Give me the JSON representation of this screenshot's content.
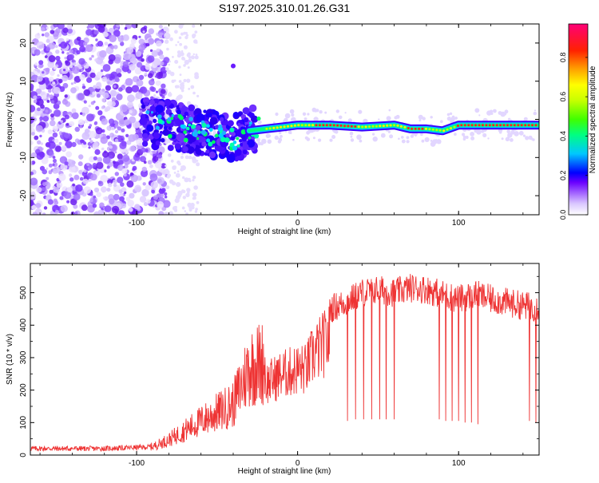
{
  "title": "S197.2025.310.01.26.G31",
  "chart_data": [
    {
      "type": "heatmap",
      "xlabel": "Height of straight line (km)",
      "ylabel": "Frequency (Hz)",
      "xlim": [
        -166,
        150
      ],
      "ylim": [
        -25,
        25
      ],
      "xticks": [
        -100,
        0,
        100
      ],
      "yticks": [
        -20,
        -10,
        0,
        10,
        20
      ],
      "colorbar": {
        "label": "Normalized spectral amplitude",
        "range": [
          0,
          0.97
        ],
        "ticks": [
          "0.0",
          "0.2",
          "0.4",
          "0.6",
          "0.8"
        ],
        "tick_values": [
          0.0,
          0.2,
          0.4,
          0.6,
          0.8
        ]
      },
      "ridge": {
        "x": [
          -96,
          -90,
          -80,
          -70,
          -60,
          -50,
          -40,
          -30,
          -20,
          -10,
          0,
          10,
          20,
          40,
          60,
          70,
          80,
          90,
          100,
          110,
          120,
          150
        ],
        "y": [
          -0.5,
          -1.0,
          -1.5,
          -2.5,
          -3.0,
          -4.0,
          -5.0,
          -3.0,
          -2.5,
          -2.0,
          -1.5,
          -1.5,
          -1.5,
          -2.0,
          -1.5,
          -2.5,
          -2.5,
          -3.0,
          -1.5,
          -1.5,
          -1.5,
          -1.5
        ]
      }
    },
    {
      "type": "line",
      "xlabel": "Height of straight line (km)",
      "ylabel": "SNR (10 * v/v)",
      "xlim": [
        -166,
        150
      ],
      "ylim": [
        0,
        590
      ],
      "xticks": [
        -100,
        0,
        100
      ],
      "yticks": [
        0,
        100,
        200,
        300,
        400,
        500
      ],
      "color": "#ee3333",
      "envelope": {
        "x": [
          -166,
          -120,
          -90,
          -80,
          -60,
          -40,
          -30,
          -20,
          -10,
          0,
          5,
          10,
          15,
          20,
          25,
          30,
          40,
          50,
          60,
          70,
          80,
          90,
          100,
          110,
          120,
          130,
          140,
          150
        ],
        "y": [
          20,
          20,
          25,
          45,
          100,
          150,
          260,
          275,
          310,
          330,
          330,
          390,
          420,
          450,
          460,
          470,
          500,
          510,
          500,
          515,
          510,
          495,
          480,
          495,
          480,
          470,
          460,
          455
        ]
      },
      "spikes_down": [
        {
          "x": 31,
          "y": 105
        },
        {
          "x": 36,
          "y": 110
        },
        {
          "x": 41,
          "y": 110
        },
        {
          "x": 46,
          "y": 110
        },
        {
          "x": 51,
          "y": 110
        },
        {
          "x": 55,
          "y": 110
        },
        {
          "x": 60,
          "y": 110
        },
        {
          "x": 88,
          "y": 110
        },
        {
          "x": 92,
          "y": 105
        },
        {
          "x": 96,
          "y": 105
        },
        {
          "x": 100,
          "y": 105
        },
        {
          "x": 104,
          "y": 100
        },
        {
          "x": 108,
          "y": 100
        },
        {
          "x": 112,
          "y": 95
        },
        {
          "x": 144,
          "y": 105
        },
        {
          "x": 148,
          "y": 100
        }
      ]
    }
  ]
}
